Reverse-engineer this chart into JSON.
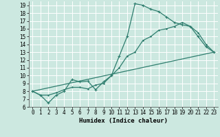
{
  "xlabel": "Humidex (Indice chaleur)",
  "bg_color": "#cce8e0",
  "grid_color": "#ffffff",
  "line_color": "#2e7d6e",
  "xlim": [
    -0.5,
    23.5
  ],
  "ylim": [
    6,
    19.5
  ],
  "xticks": [
    0,
    1,
    2,
    3,
    4,
    5,
    6,
    7,
    8,
    9,
    10,
    11,
    12,
    13,
    14,
    15,
    16,
    17,
    18,
    19,
    20,
    21,
    22,
    23
  ],
  "yticks": [
    6,
    7,
    8,
    9,
    10,
    11,
    12,
    13,
    14,
    15,
    16,
    17,
    18,
    19
  ],
  "line1_x": [
    0,
    1,
    2,
    3,
    4,
    5,
    6,
    7,
    8,
    9,
    10,
    11,
    12,
    13,
    14,
    15,
    16,
    17,
    18,
    19,
    20,
    21,
    22,
    23
  ],
  "line1_y": [
    8.0,
    7.5,
    6.5,
    7.5,
    8.0,
    9.5,
    9.2,
    9.3,
    8.2,
    9.2,
    10.0,
    12.5,
    15.0,
    19.2,
    19.0,
    18.5,
    18.2,
    17.5,
    16.8,
    16.5,
    16.3,
    15.0,
    13.7,
    13.0
  ],
  "line2_x": [
    0,
    1,
    2,
    3,
    4,
    5,
    6,
    7,
    8,
    9,
    10,
    11,
    12,
    13,
    14,
    15,
    16,
    17,
    18,
    19,
    20,
    21,
    22,
    23
  ],
  "line2_y": [
    8.0,
    7.5,
    7.5,
    7.8,
    8.2,
    8.5,
    8.5,
    8.3,
    8.8,
    9.0,
    10.0,
    11.0,
    12.5,
    13.0,
    14.5,
    15.0,
    15.8,
    16.0,
    16.3,
    16.8,
    16.3,
    15.5,
    14.0,
    13.0
  ],
  "line3_x": [
    0,
    23
  ],
  "line3_y": [
    8.0,
    13.0
  ]
}
